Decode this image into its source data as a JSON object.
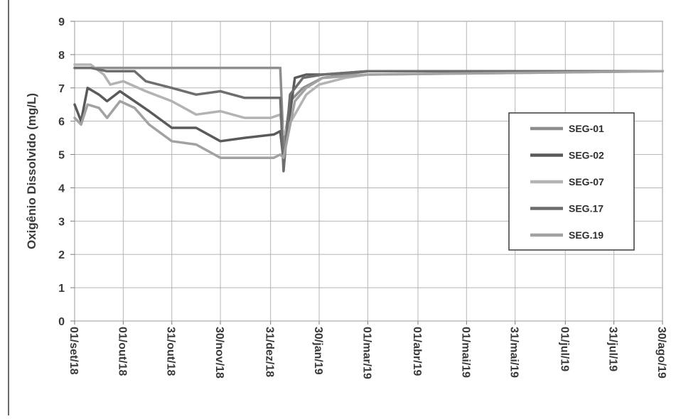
{
  "chart_data": {
    "type": "line",
    "title": "",
    "ylabel": "Oxigênio Dissolvido (mg/L)",
    "xlabel": "",
    "ylim": [
      0,
      9
    ],
    "yticks": [
      0,
      1,
      2,
      3,
      4,
      5,
      6,
      7,
      8,
      9
    ],
    "x_tick_labels": [
      "01/set/18",
      "01/out/18",
      "31/out/18",
      "30/nov/18",
      "31/dez/18",
      "30/jan/19",
      "01/mar/19",
      "01/abr/19",
      "01/mai/19",
      "31/mai/19",
      "01/jul/19",
      "31/jul/19",
      "30/ago/19"
    ],
    "x_range": [
      "01/set/18",
      "30/ago/19"
    ],
    "grid": true,
    "legend_position": "right",
    "series": [
      {
        "name": "SEG-01",
        "color": "#8e8e8e",
        "points": [
          [
            "01/set/18",
            7.6
          ],
          [
            "05/set/18",
            7.6
          ],
          [
            "31/dez/18",
            7.6
          ],
          [
            "06/jan/19",
            7.6
          ],
          [
            "08/jan/19",
            5.2
          ],
          [
            "12/jan/19",
            6.6
          ],
          [
            "20/jan/19",
            7.0
          ],
          [
            "01/fev/19",
            7.3
          ],
          [
            "01/mar/19",
            7.5
          ],
          [
            "30/ago/19",
            7.5
          ]
        ]
      },
      {
        "name": "SEG-02",
        "color": "#5a5a5a",
        "points": [
          [
            "01/set/18",
            6.5
          ],
          [
            "05/set/18",
            6.0
          ],
          [
            "09/set/18",
            7.0
          ],
          [
            "16/set/18",
            6.8
          ],
          [
            "21/set/18",
            6.6
          ],
          [
            "29/set/18",
            6.9
          ],
          [
            "08/out/18",
            6.6
          ],
          [
            "17/out/18",
            6.3
          ],
          [
            "31/out/18",
            5.8
          ],
          [
            "15/nov/18",
            5.8
          ],
          [
            "30/nov/18",
            5.4
          ],
          [
            "15/dez/18",
            5.5
          ],
          [
            "02/jan/19",
            5.6
          ],
          [
            "06/jan/19",
            5.7
          ],
          [
            "08/jan/19",
            4.8
          ],
          [
            "15/jan/19",
            7.3
          ],
          [
            "22/jan/19",
            7.4
          ],
          [
            "01/fev/19",
            7.4
          ],
          [
            "01/mar/19",
            7.5
          ],
          [
            "30/ago/19",
            7.5
          ]
        ]
      },
      {
        "name": "SEG-07",
        "color": "#b3b3b3",
        "points": [
          [
            "01/set/18",
            7.7
          ],
          [
            "11/set/18",
            7.7
          ],
          [
            "19/set/18",
            7.4
          ],
          [
            "23/set/18",
            7.1
          ],
          [
            "01/out/18",
            7.2
          ],
          [
            "15/out/18",
            6.9
          ],
          [
            "31/out/18",
            6.6
          ],
          [
            "15/nov/18",
            6.2
          ],
          [
            "30/nov/18",
            6.3
          ],
          [
            "15/dez/18",
            6.1
          ],
          [
            "31/dez/18",
            6.1
          ],
          [
            "06/jan/19",
            6.2
          ],
          [
            "08/jan/19",
            5.6
          ],
          [
            "15/jan/19",
            6.2
          ],
          [
            "22/jan/19",
            6.8
          ],
          [
            "30/jan/19",
            7.1
          ],
          [
            "15/fev/19",
            7.3
          ],
          [
            "01/mar/19",
            7.4
          ],
          [
            "30/ago/19",
            7.5
          ]
        ]
      },
      {
        "name": "SEG.17",
        "color": "#6e6e6e",
        "points": [
          [
            "01/set/18",
            7.6
          ],
          [
            "11/set/18",
            7.6
          ],
          [
            "21/set/18",
            7.5
          ],
          [
            "01/out/18",
            7.5
          ],
          [
            "08/out/18",
            7.5
          ],
          [
            "15/out/18",
            7.2
          ],
          [
            "31/out/18",
            7.0
          ],
          [
            "15/nov/18",
            6.8
          ],
          [
            "30/nov/18",
            6.9
          ],
          [
            "15/dez/18",
            6.7
          ],
          [
            "31/dez/18",
            6.7
          ],
          [
            "06/jan/19",
            6.7
          ],
          [
            "08/jan/19",
            4.5
          ],
          [
            "12/jan/19",
            6.8
          ],
          [
            "20/jan/19",
            7.3
          ],
          [
            "01/fev/19",
            7.4
          ],
          [
            "01/mar/19",
            7.5
          ],
          [
            "30/ago/19",
            7.5
          ]
        ]
      },
      {
        "name": "SEG.19",
        "color": "#a2a2a2",
        "points": [
          [
            "01/set/18",
            6.1
          ],
          [
            "05/set/18",
            5.9
          ],
          [
            "09/set/18",
            6.5
          ],
          [
            "16/set/18",
            6.4
          ],
          [
            "21/set/18",
            6.1
          ],
          [
            "29/set/18",
            6.6
          ],
          [
            "08/out/18",
            6.4
          ],
          [
            "17/out/18",
            5.9
          ],
          [
            "31/out/18",
            5.4
          ],
          [
            "15/nov/18",
            5.3
          ],
          [
            "30/nov/18",
            4.9
          ],
          [
            "15/dez/18",
            4.9
          ],
          [
            "02/jan/19",
            4.9
          ],
          [
            "06/jan/19",
            5.0
          ],
          [
            "08/jan/19",
            4.9
          ],
          [
            "15/jan/19",
            6.6
          ],
          [
            "22/jan/19",
            7.0
          ],
          [
            "01/fev/19",
            7.3
          ],
          [
            "01/mar/19",
            7.4
          ],
          [
            "30/ago/19",
            7.5
          ]
        ]
      }
    ]
  }
}
